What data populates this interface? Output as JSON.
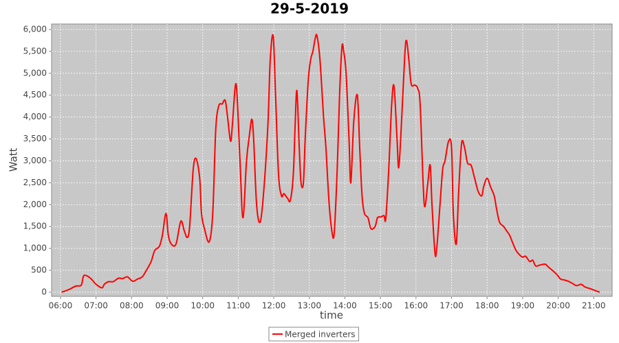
{
  "chart_data": {
    "type": "line",
    "title": "29-5-2019",
    "x_label": "time",
    "y_label": "Watt",
    "x": [
      "06:02",
      "06:14",
      "06:26",
      "06:35",
      "06:39",
      "06:45",
      "06:52",
      "07:00",
      "07:10",
      "07:14",
      "07:21",
      "07:29",
      "07:38",
      "07:45",
      "07:53",
      "08:02",
      "08:10",
      "08:18",
      "08:25",
      "08:33",
      "08:39",
      "08:47",
      "08:52",
      "08:58",
      "09:02",
      "09:07",
      "09:15",
      "09:23",
      "09:29",
      "09:34",
      "09:38",
      "09:44",
      "09:49",
      "09:55",
      "09:58",
      "10:03",
      "10:11",
      "10:17",
      "10:22",
      "10:27",
      "10:33",
      "10:38",
      "10:42",
      "10:47",
      "10:50",
      "10:55",
      "10:58",
      "11:03",
      "11:08",
      "11:14",
      "11:19",
      "11:23",
      "11:26",
      "11:31",
      "11:37",
      "11:43",
      "11:50",
      "11:54",
      "11:59",
      "12:03",
      "12:08",
      "12:13",
      "12:17",
      "12:23",
      "12:28",
      "12:33",
      "12:36",
      "12:39",
      "12:43",
      "12:46",
      "12:50",
      "12:53",
      "12:58",
      "13:02",
      "13:06",
      "13:10",
      "13:13",
      "13:18",
      "13:24",
      "13:28",
      "13:33",
      "13:38",
      "13:42",
      "13:47",
      "13:51",
      "13:55",
      "13:58",
      "14:02",
      "14:07",
      "14:10",
      "14:15",
      "14:21",
      "14:25",
      "14:29",
      "14:33",
      "14:39",
      "14:44",
      "14:51",
      "14:55",
      "15:01",
      "15:06",
      "15:09",
      "15:14",
      "15:19",
      "15:23",
      "15:28",
      "15:31",
      "15:36",
      "15:41",
      "15:44",
      "15:48",
      "15:52",
      "15:58",
      "16:03",
      "16:07",
      "16:12",
      "16:15",
      "16:20",
      "16:24",
      "16:27",
      "16:32",
      "16:35",
      "16:40",
      "16:45",
      "16:49",
      "16:55",
      "17:00",
      "17:03",
      "17:08",
      "17:12",
      "17:17",
      "17:22",
      "17:27",
      "17:33",
      "17:39",
      "17:45",
      "17:51",
      "17:54",
      "18:00",
      "18:06",
      "18:12",
      "18:16",
      "18:21",
      "18:28",
      "18:33",
      "18:38",
      "18:44",
      "18:49",
      "18:55",
      "19:00",
      "19:05",
      "19:12",
      "19:17",
      "19:22",
      "19:29",
      "19:38",
      "19:43",
      "19:50",
      "19:58",
      "20:04",
      "20:10",
      "20:17",
      "20:24",
      "20:31",
      "20:39",
      "20:45",
      "20:54",
      "21:02",
      "21:08",
      "21:10"
    ],
    "series": [
      {
        "name": "Merged inverters",
        "color": "#ff0000",
        "values": [
          0,
          60,
          140,
          160,
          370,
          370,
          300,
          180,
          100,
          180,
          240,
          240,
          320,
          310,
          350,
          250,
          300,
          350,
          500,
          700,
          950,
          1050,
          1300,
          1800,
          1300,
          1100,
          1100,
          1620,
          1400,
          1250,
          1500,
          2800,
          3050,
          2600,
          1800,
          1450,
          1150,
          1800,
          3700,
          4250,
          4300,
          4380,
          4000,
          3450,
          3800,
          4700,
          4500,
          3000,
          1700,
          3000,
          3600,
          3950,
          3500,
          2000,
          1600,
          2300,
          3800,
          5300,
          5850,
          4500,
          2700,
          2200,
          2250,
          2150,
          2100,
          2700,
          3800,
          4600,
          3300,
          2500,
          2500,
          3500,
          4800,
          5300,
          5500,
          5800,
          5850,
          5300,
          4000,
          3300,
          2100,
          1400,
          1350,
          2800,
          4500,
          5600,
          5500,
          5000,
          3500,
          2500,
          3900,
          4500,
          3300,
          2200,
          1800,
          1700,
          1450,
          1500,
          1700,
          1720,
          1750,
          1680,
          2800,
          4300,
          4700,
          3500,
          2850,
          4000,
          5400,
          5750,
          5300,
          4750,
          4730,
          4650,
          4300,
          2500,
          1950,
          2500,
          2900,
          2000,
          900,
          1000,
          1900,
          2800,
          3000,
          3450,
          3300,
          1800,
          1100,
          2300,
          3400,
          3300,
          2950,
          2900,
          2600,
          2300,
          2200,
          2400,
          2600,
          2400,
          2200,
          1900,
          1600,
          1500,
          1400,
          1300,
          1100,
          950,
          850,
          800,
          820,
          700,
          730,
          600,
          620,
          640,
          580,
          500,
          400,
          300,
          280,
          250,
          200,
          150,
          180,
          120,
          80,
          40,
          10,
          0
        ]
      }
    ],
    "xlim": [
      "05:45",
      "21:31"
    ],
    "xticks": [
      "06:00",
      "07:00",
      "08:00",
      "09:00",
      "10:00",
      "11:00",
      "12:00",
      "13:00",
      "14:00",
      "15:00",
      "16:00",
      "17:00",
      "18:00",
      "19:00",
      "20:00",
      "21:00"
    ],
    "ylim": [
      -95,
      6125
    ],
    "yticks": [
      0,
      500,
      {
        "value": 1000,
        "label": "1,000"
      },
      {
        "value": 1500,
        "label": "1,500"
      },
      {
        "value": 2000,
        "label": "2,000"
      },
      {
        "value": 2500,
        "label": "2,500"
      },
      {
        "value": 3000,
        "label": "3,000"
      },
      {
        "value": 3500,
        "label": "3,500"
      },
      {
        "value": 4000,
        "label": "4,000"
      },
      {
        "value": 4500,
        "label": "4,500"
      },
      {
        "value": 5000,
        "label": "5,000"
      },
      {
        "value": 5500,
        "label": "5,500"
      },
      {
        "value": 6000,
        "label": "6,000"
      }
    ],
    "grid": true,
    "legend": "bottom"
  }
}
